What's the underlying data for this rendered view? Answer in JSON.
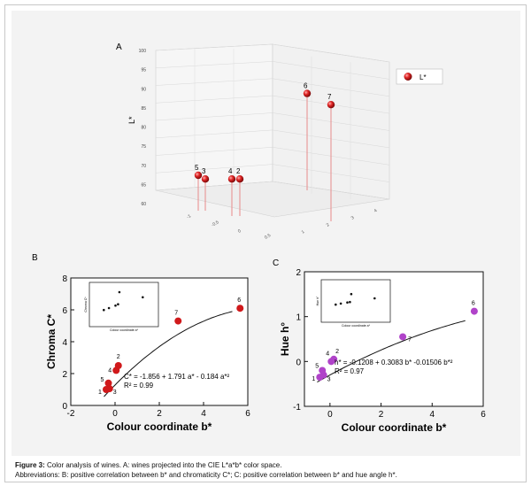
{
  "panel_a": {
    "label": "A",
    "z_axis_label": "L*",
    "legend_label": "L*",
    "z_ticks": [
      "100",
      "95",
      "90",
      "85",
      "80",
      "75",
      "70",
      "65",
      "60"
    ]
  },
  "panel_b": {
    "label": "B",
    "equation": "C* = -1.856 + 1.791 a* - 0.184 a*²",
    "r2": "R² = 0.99"
  },
  "panel_c": {
    "label": "C",
    "equation": "h* = -0.1208 + 0.3083 b* -0.01506 b*²",
    "r2": "R² = 0.97"
  },
  "caption": {
    "label": "Figure 3:",
    "text": " Color analysis of wines. A: wines projected into the CIE L*a*b* color space.",
    "line2": "Abbreviations: B: positive correlation between b* and chromaticity C*; C: positive correlation between b* and hue angle h*."
  },
  "chart_data": [
    {
      "type": "scatter",
      "title": "",
      "xlabel": "Colour coordinate b*",
      "ylabel": "Chroma C*",
      "xlim": [
        -2,
        6
      ],
      "ylim": [
        0,
        8
      ],
      "xticks": [
        "-2",
        "0",
        "2",
        "4",
        "6"
      ],
      "yticks": [
        "0",
        "2",
        "4",
        "6",
        "8"
      ],
      "points": [
        {
          "label": "1",
          "x": -0.4,
          "y": 1.0
        },
        {
          "label": "3",
          "x": -0.25,
          "y": 1.05
        },
        {
          "label": "5",
          "x": -0.3,
          "y": 1.4
        },
        {
          "label": "4",
          "x": 0.05,
          "y": 2.2
        },
        {
          "label": "2",
          "x": 0.15,
          "y": 2.5
        },
        {
          "label": "7",
          "x": 2.85,
          "y": 5.3
        },
        {
          "label": "6",
          "x": 5.65,
          "y": 6.1
        }
      ],
      "inset": {
        "xlabel": "Colour coordinate a*",
        "ylabel": "Chroma C*",
        "points": [
          [
            1.2,
            1.5
          ],
          [
            1.6,
            1.8
          ],
          [
            2.1,
            2.2
          ],
          [
            2.3,
            2.4
          ],
          [
            2.4,
            4.3
          ],
          [
            4.2,
            3.5
          ]
        ]
      }
    },
    {
      "type": "scatter",
      "title": "",
      "xlabel": "Colour coordinate b*",
      "ylabel": "Hue h°",
      "xlim": [
        -1,
        6
      ],
      "ylim": [
        -1,
        2
      ],
      "xticks": [
        "0",
        "2",
        "4",
        "6"
      ],
      "yticks": [
        "-1",
        "0",
        "1",
        "2"
      ],
      "points": [
        {
          "label": "1",
          "x": -0.4,
          "y": -0.35
        },
        {
          "label": "3",
          "x": -0.25,
          "y": -0.3
        },
        {
          "label": "5",
          "x": -0.3,
          "y": -0.2
        },
        {
          "label": "4",
          "x": 0.05,
          "y": 0.0
        },
        {
          "label": "2",
          "x": 0.15,
          "y": 0.05
        },
        {
          "label": "7",
          "x": 2.85,
          "y": 0.55
        },
        {
          "label": "6",
          "x": 5.65,
          "y": 1.12
        }
      ],
      "inset": {
        "xlabel": "Colour coordinate a*",
        "ylabel": "Hue h°",
        "points": [
          [
            1.2,
            0.5
          ],
          [
            1.6,
            0.55
          ],
          [
            2.1,
            0.6
          ],
          [
            2.3,
            0.62
          ],
          [
            2.4,
            1.0
          ],
          [
            4.2,
            0.8
          ]
        ]
      }
    }
  ],
  "panel_a_points": [
    {
      "label": "6",
      "z": 92
    },
    {
      "label": "7",
      "z": 89
    },
    {
      "label": "5",
      "z": 70
    },
    {
      "label": "3",
      "z": 69
    },
    {
      "label": "4",
      "z": 69
    },
    {
      "label": "2",
      "z": 69
    }
  ],
  "colors": {
    "panel_b_marker": "#d0191b",
    "panel_c_marker": "#b043c9",
    "stem": "#e88a8a",
    "sphere": "#d81e1e"
  }
}
